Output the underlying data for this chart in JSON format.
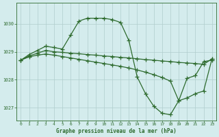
{
  "background_color": "#d4eced",
  "grid_color": "#b0cdcd",
  "line_color": "#2d6a2d",
  "title": "Graphe pression niveau de la mer (hPa)",
  "xlim": [
    -0.5,
    23.5
  ],
  "ylim": [
    1026.55,
    1030.75
  ],
  "yticks": [
    1027,
    1028,
    1029,
    1030
  ],
  "xticks": [
    0,
    1,
    2,
    3,
    4,
    5,
    6,
    7,
    8,
    9,
    10,
    11,
    12,
    13,
    14,
    15,
    16,
    17,
    18,
    19,
    20,
    21,
    22,
    23
  ],
  "series1": {
    "x": [
      0,
      1,
      2,
      3,
      4,
      5,
      6,
      7,
      8,
      9,
      10,
      11,
      12,
      13,
      14,
      15,
      16,
      17,
      18,
      19,
      20,
      21,
      22,
      23
    ],
    "y": [
      1028.7,
      1028.9,
      1029.05,
      1029.2,
      1029.15,
      1029.1,
      1029.6,
      1030.1,
      1030.2,
      1030.2,
      1030.2,
      1030.15,
      1030.05,
      1029.4,
      1028.1,
      1027.5,
      1027.05,
      1026.8,
      1026.75,
      1027.25,
      1028.05,
      1028.15,
      1028.65,
      1028.7
    ]
  },
  "series2": {
    "x": [
      0,
      1,
      2,
      3,
      4,
      5,
      6,
      7,
      8,
      9,
      10,
      11,
      12,
      13,
      14,
      15,
      16,
      17,
      18,
      19,
      20,
      21,
      22,
      23
    ],
    "y": [
      1028.7,
      1028.85,
      1028.95,
      1029.05,
      1029.0,
      1028.98,
      1028.95,
      1028.93,
      1028.9,
      1028.88,
      1028.85,
      1028.83,
      1028.8,
      1028.78,
      1028.75,
      1028.72,
      1028.7,
      1028.67,
      1028.65,
      1028.62,
      1028.6,
      1028.58,
      1028.55,
      1028.75
    ]
  },
  "series3": {
    "x": [
      0,
      1,
      2,
      3,
      4,
      5,
      6,
      7,
      8,
      9,
      10,
      11,
      12,
      13,
      14,
      15,
      16,
      17,
      18,
      19,
      20,
      21,
      22,
      23
    ],
    "y": [
      1028.7,
      1028.82,
      1028.88,
      1028.92,
      1028.88,
      1028.83,
      1028.78,
      1028.73,
      1028.68,
      1028.63,
      1028.58,
      1028.53,
      1028.48,
      1028.42,
      1028.35,
      1028.27,
      1028.18,
      1028.08,
      1027.95,
      1027.25,
      1027.35,
      1027.5,
      1027.6,
      1028.75
    ]
  }
}
